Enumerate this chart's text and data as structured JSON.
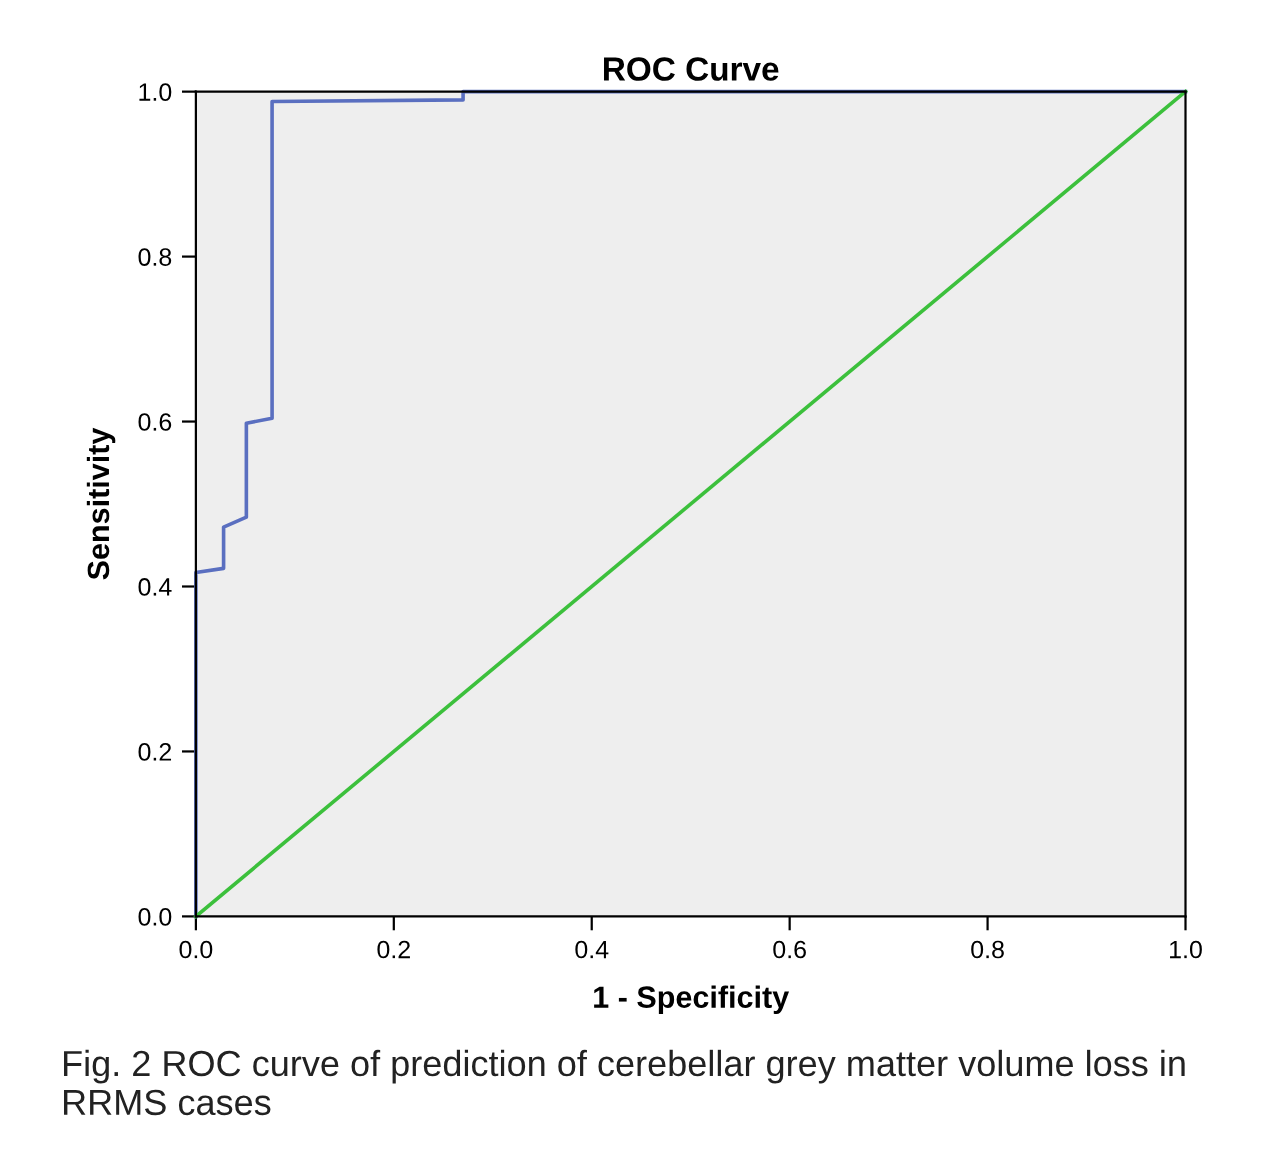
{
  "chart_data": {
    "type": "line",
    "title": "ROC Curve",
    "xlabel": "1 - Specificity",
    "ylabel": "Sensitivity",
    "series": [
      {
        "color": "#5a6fc0",
        "x": [
          0,
          0,
          0.028,
          0.028,
          0.051,
          0.051,
          0.077,
          0.077,
          0.27,
          0.27,
          1
        ],
        "values": [
          0,
          0.417,
          0.422,
          0.472,
          0.484,
          0.598,
          0.604,
          0.988,
          0.99,
          1,
          1
        ]
      },
      {
        "color": "#3cc03c",
        "x": [
          0,
          1
        ],
        "values": [
          0,
          1
        ]
      }
    ],
    "xlim": [
      0,
      1
    ],
    "ylim": [
      0,
      1
    ],
    "xticks": [
      {
        "value": 0,
        "label": "0.0"
      },
      {
        "value": 0.2,
        "label": "0.2"
      },
      {
        "value": 0.4,
        "label": "0.4"
      },
      {
        "value": 0.6,
        "label": "0.6"
      },
      {
        "value": 0.8,
        "label": "0.8"
      },
      {
        "value": 1,
        "label": "1.0"
      }
    ],
    "yticks": [
      {
        "value": 0,
        "label": "0.0"
      },
      {
        "value": 0.2,
        "label": "0.2"
      },
      {
        "value": 0.4,
        "label": "0.4"
      },
      {
        "value": 0.6,
        "label": "0.6"
      },
      {
        "value": 0.8,
        "label": "0.8"
      },
      {
        "value": 1,
        "label": "1.0"
      }
    ],
    "grid": false,
    "marker": "none",
    "line_style": "solid",
    "annotations": [
      "Fig. 2 ROC curve of prediction of cerebellar grey matter volume loss in RRMS cases"
    ]
  }
}
